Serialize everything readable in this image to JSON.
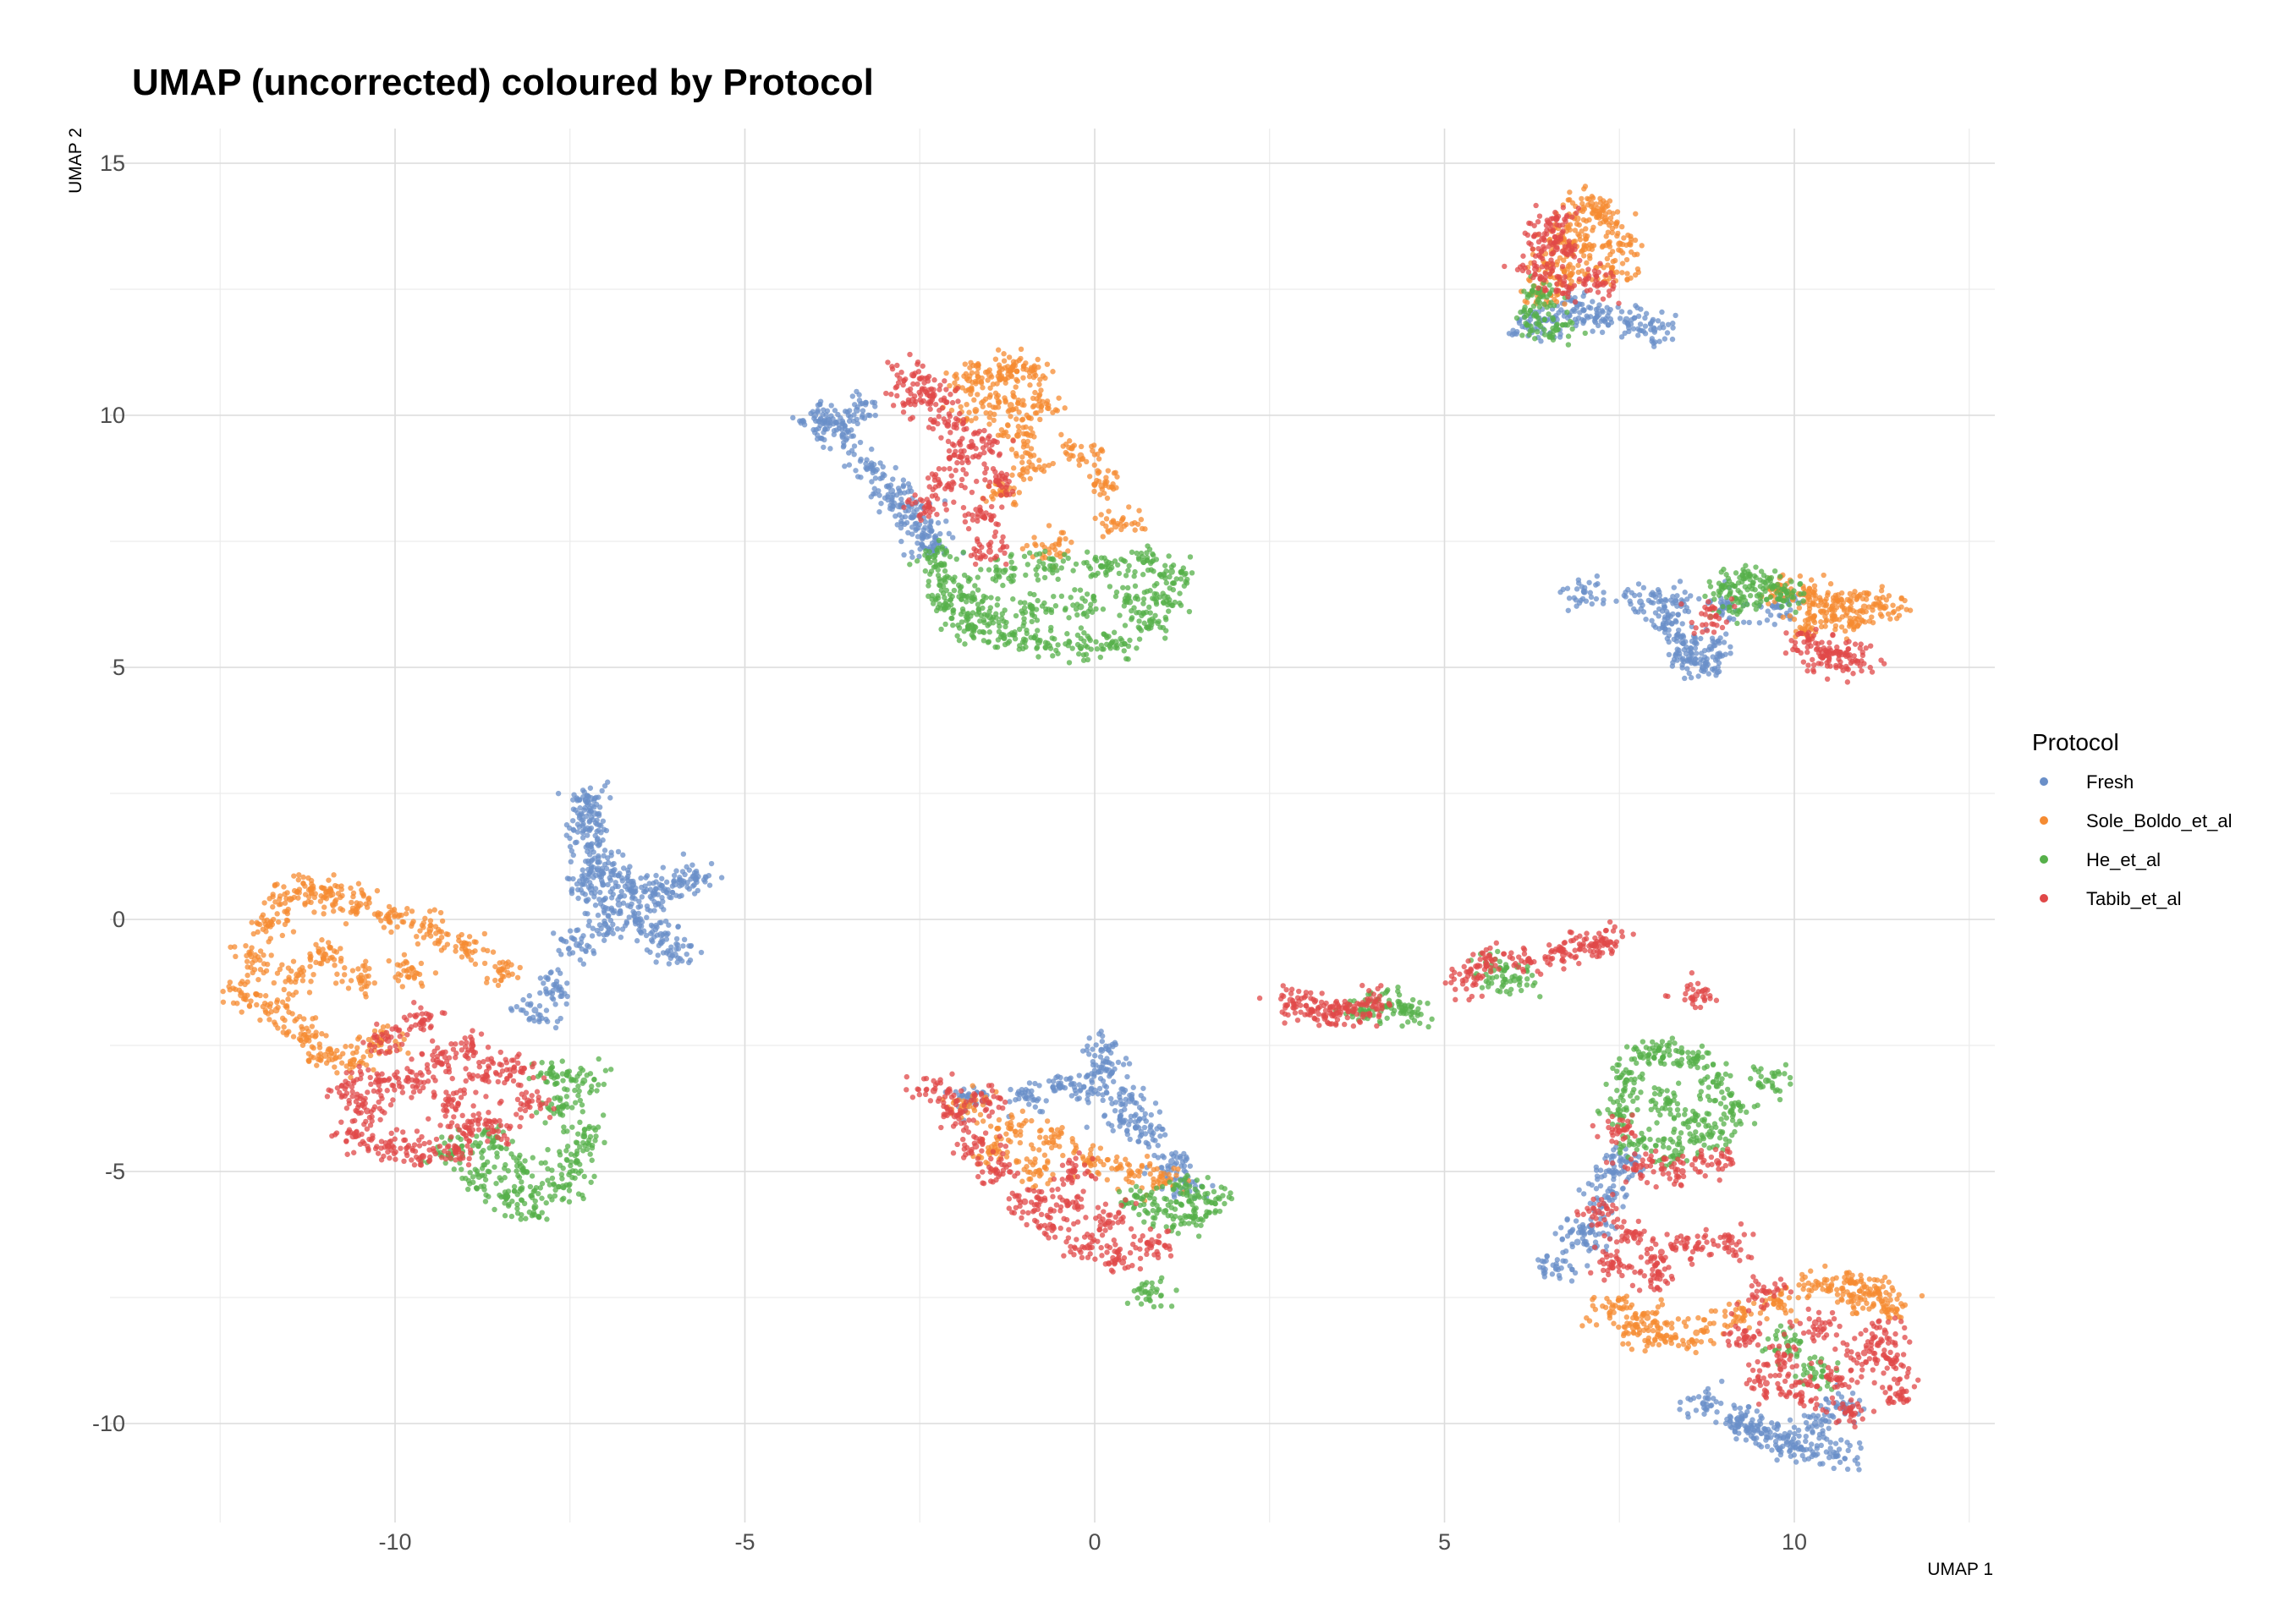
{
  "chart_data": {
    "type": "scatter",
    "title": "UMAP (uncorrected) coloured by Protocol",
    "xlabel": "UMAP 1",
    "ylabel": "UMAP 2",
    "xlim": [
      -13.0,
      13.0
    ],
    "ylim": [
      -12.0,
      15.6
    ],
    "x_ticks": [
      -10,
      -5,
      0,
      5,
      10
    ],
    "y_ticks": [
      -10,
      -5,
      0,
      5,
      10,
      15
    ],
    "grid": true,
    "legend": {
      "title": "Protocol",
      "position": "right"
    },
    "series": [
      {
        "name": "Fresh",
        "color": "#6a8fc8",
        "points": [
          [
            -7.2,
            2.4
          ],
          [
            -7.15,
            2.1
          ],
          [
            -7.25,
            1.8
          ],
          [
            -7.2,
            1.4
          ],
          [
            -7.1,
            1.0
          ],
          [
            -7.2,
            0.6
          ],
          [
            -6.9,
            0.9
          ],
          [
            -6.6,
            0.7
          ],
          [
            -6.3,
            0.5
          ],
          [
            -6.0,
            0.7
          ],
          [
            -5.7,
            0.8
          ],
          [
            -6.8,
            0.3
          ],
          [
            -6.5,
            0.0
          ],
          [
            -6.2,
            -0.3
          ],
          [
            -6.0,
            -0.7
          ],
          [
            -7.0,
            -0.1
          ],
          [
            -7.4,
            -0.5
          ],
          [
            -7.7,
            -1.3
          ],
          [
            -8.0,
            -1.8
          ],
          [
            -4.0,
            10.0
          ],
          [
            -3.6,
            9.6
          ],
          [
            -3.2,
            9.0
          ],
          [
            -2.9,
            8.5
          ],
          [
            -2.6,
            8.0
          ],
          [
            -2.3,
            7.4
          ],
          [
            -3.8,
            9.9
          ],
          [
            -3.4,
            10.1
          ],
          [
            -2.8,
            8.2
          ],
          [
            -2.4,
            7.6
          ],
          [
            0.1,
            -2.6
          ],
          [
            0.2,
            -3.0
          ],
          [
            0.0,
            -3.4
          ],
          [
            0.5,
            -3.6
          ],
          [
            -0.5,
            -3.3
          ],
          [
            -1.0,
            -3.5
          ],
          [
            -1.8,
            -3.5
          ],
          [
            0.8,
            -4.2
          ],
          [
            1.1,
            -4.8
          ],
          [
            1.3,
            -5.2
          ],
          [
            0.4,
            -4.0
          ],
          [
            9.8,
            6.2
          ],
          [
            9.0,
            6.2
          ],
          [
            8.3,
            6.3
          ],
          [
            7.8,
            6.3
          ],
          [
            7.0,
            6.5
          ],
          [
            8.2,
            5.9
          ],
          [
            8.4,
            5.5
          ],
          [
            8.5,
            5.2
          ],
          [
            8.7,
            5.0
          ],
          [
            8.8,
            5.4
          ],
          [
            6.2,
            11.8
          ],
          [
            6.6,
            11.9
          ],
          [
            7.2,
            12.0
          ],
          [
            7.6,
            11.9
          ],
          [
            8.0,
            11.7
          ],
          [
            6.9,
            12.2
          ],
          [
            6.6,
            -6.9
          ],
          [
            6.9,
            -6.4
          ],
          [
            7.1,
            -6.1
          ],
          [
            7.3,
            -5.5
          ],
          [
            7.4,
            -5.0
          ],
          [
            7.6,
            -4.8
          ],
          [
            8.7,
            -9.6
          ],
          [
            9.2,
            -9.9
          ],
          [
            9.6,
            -10.2
          ],
          [
            10.1,
            -10.5
          ],
          [
            10.6,
            -10.6
          ],
          [
            9.9,
            -10.4
          ],
          [
            9.4,
            -10.1
          ],
          [
            10.3,
            -10.0
          ],
          [
            10.6,
            -9.6
          ]
        ]
      },
      {
        "name": "Sole_Boldo_et_al",
        "color": "#f58b32",
        "points": [
          [
            -12.2,
            -1.5
          ],
          [
            -12.0,
            -0.8
          ],
          [
            -11.8,
            -0.1
          ],
          [
            -11.5,
            0.4
          ],
          [
            -11.2,
            0.6
          ],
          [
            -10.9,
            0.5
          ],
          [
            -10.5,
            0.3
          ],
          [
            -10.0,
            0.1
          ],
          [
            -9.5,
            -0.2
          ],
          [
            -9.0,
            -0.5
          ],
          [
            -8.5,
            -1.0
          ],
          [
            -11.7,
            -1.8
          ],
          [
            -11.3,
            -2.3
          ],
          [
            -11.0,
            -2.7
          ],
          [
            -10.6,
            -2.8
          ],
          [
            -10.2,
            -2.4
          ],
          [
            -11.0,
            -0.7
          ],
          [
            -10.5,
            -1.2
          ],
          [
            -9.8,
            -1.0
          ],
          [
            -11.4,
            -1.1
          ],
          [
            -1.8,
            10.7
          ],
          [
            -1.5,
            10.8
          ],
          [
            -1.2,
            10.9
          ],
          [
            -0.9,
            10.9
          ],
          [
            -0.8,
            10.2
          ],
          [
            -1.1,
            9.6
          ],
          [
            -0.9,
            9.0
          ],
          [
            -1.3,
            8.5
          ],
          [
            -0.2,
            9.2
          ],
          [
            0.1,
            8.6
          ],
          [
            0.3,
            7.8
          ],
          [
            -0.6,
            7.4
          ],
          [
            -1.2,
            10.2
          ],
          [
            -1.7,
            10.1
          ],
          [
            6.4,
            12.4
          ],
          [
            6.5,
            13.0
          ],
          [
            6.7,
            13.5
          ],
          [
            6.9,
            13.9
          ],
          [
            7.1,
            14.2
          ],
          [
            7.3,
            13.9
          ],
          [
            7.5,
            13.4
          ],
          [
            7.4,
            12.8
          ],
          [
            6.8,
            12.8
          ],
          [
            7.0,
            13.3
          ],
          [
            9.8,
            6.5
          ],
          [
            10.2,
            6.4
          ],
          [
            10.6,
            6.3
          ],
          [
            11.0,
            6.2
          ],
          [
            11.3,
            6.2
          ],
          [
            10.8,
            5.9
          ],
          [
            10.2,
            5.8
          ],
          [
            10.4,
            6.1
          ],
          [
            -1.8,
            -3.7
          ],
          [
            -1.2,
            -4.1
          ],
          [
            -0.6,
            -4.4
          ],
          [
            -0.1,
            -4.8
          ],
          [
            0.5,
            -5.0
          ],
          [
            1.0,
            -5.2
          ],
          [
            -1.5,
            -4.6
          ],
          [
            -0.8,
            -5.0
          ],
          [
            7.4,
            -7.7
          ],
          [
            7.7,
            -8.1
          ],
          [
            8.1,
            -8.3
          ],
          [
            8.6,
            -8.2
          ],
          [
            9.2,
            -7.9
          ],
          [
            9.8,
            -7.6
          ],
          [
            10.3,
            -7.3
          ],
          [
            10.8,
            -7.2
          ],
          [
            11.2,
            -7.4
          ],
          [
            11.4,
            -7.7
          ],
          [
            7.9,
            -7.9
          ],
          [
            10.9,
            -7.5
          ]
        ]
      },
      {
        "name": "He_et_al",
        "color": "#56b04a",
        "points": [
          [
            -9.2,
            -4.6
          ],
          [
            -8.8,
            -5.1
          ],
          [
            -8.4,
            -5.5
          ],
          [
            -8.0,
            -5.7
          ],
          [
            -7.6,
            -5.3
          ],
          [
            -7.4,
            -4.8
          ],
          [
            -7.3,
            -4.3
          ],
          [
            -7.6,
            -3.7
          ],
          [
            -7.7,
            -3.1
          ],
          [
            -7.3,
            -3.2
          ],
          [
            -8.2,
            -4.9
          ],
          [
            -8.6,
            -4.4
          ],
          [
            -2.3,
            7.2
          ],
          [
            -2.2,
            6.7
          ],
          [
            -2.1,
            6.2
          ],
          [
            -1.8,
            5.8
          ],
          [
            -1.3,
            5.6
          ],
          [
            -0.8,
            5.5
          ],
          [
            -0.2,
            5.4
          ],
          [
            0.3,
            5.5
          ],
          [
            0.8,
            5.9
          ],
          [
            1.0,
            6.4
          ],
          [
            1.1,
            6.9
          ],
          [
            0.7,
            7.1
          ],
          [
            0.1,
            7.0
          ],
          [
            -0.6,
            7.0
          ],
          [
            -1.3,
            6.9
          ],
          [
            -1.8,
            6.4
          ],
          [
            -0.9,
            6.2
          ],
          [
            -0.2,
            6.2
          ],
          [
            0.5,
            6.3
          ],
          [
            -1.5,
            6.0
          ],
          [
            6.3,
            12.0
          ],
          [
            6.4,
            12.4
          ],
          [
            6.6,
            11.7
          ],
          [
            9.0,
            6.6
          ],
          [
            9.3,
            6.8
          ],
          [
            9.6,
            6.6
          ],
          [
            9.2,
            6.3
          ],
          [
            9.9,
            6.5
          ],
          [
            7.8,
            -2.7
          ],
          [
            8.2,
            -2.6
          ],
          [
            8.6,
            -2.8
          ],
          [
            8.9,
            -3.3
          ],
          [
            9.1,
            -3.8
          ],
          [
            8.8,
            -4.3
          ],
          [
            8.3,
            -4.6
          ],
          [
            7.8,
            -4.4
          ],
          [
            7.5,
            -3.8
          ],
          [
            7.6,
            -3.2
          ],
          [
            8.2,
            -3.6
          ],
          [
            8.5,
            -4.0
          ],
          [
            9.6,
            -3.2
          ],
          [
            0.6,
            -5.5
          ],
          [
            1.0,
            -5.8
          ],
          [
            1.4,
            -5.9
          ],
          [
            1.6,
            -5.6
          ],
          [
            1.3,
            -5.3
          ],
          [
            0.8,
            -7.4
          ],
          [
            3.8,
            -1.8
          ],
          [
            4.2,
            -1.7
          ],
          [
            4.5,
            -1.8
          ],
          [
            5.7,
            -1.0
          ],
          [
            6.0,
            -1.2
          ],
          [
            9.9,
            -8.4
          ],
          [
            10.3,
            -9.0
          ]
        ]
      },
      {
        "name": "Tabib_et_al",
        "color": "#e04848",
        "points": [
          [
            -10.7,
            -3.3
          ],
          [
            -10.4,
            -3.8
          ],
          [
            -10.6,
            -4.3
          ],
          [
            -10.1,
            -4.5
          ],
          [
            -9.6,
            -4.7
          ],
          [
            -9.1,
            -4.6
          ],
          [
            -8.6,
            -4.2
          ],
          [
            -8.1,
            -3.6
          ],
          [
            -8.3,
            -3.0
          ],
          [
            -8.9,
            -2.5
          ],
          [
            -9.6,
            -2.0
          ],
          [
            -10.1,
            -2.4
          ],
          [
            -9.7,
            -3.2
          ],
          [
            -9.2,
            -3.6
          ],
          [
            -8.7,
            -3.1
          ],
          [
            -10.2,
            -3.2
          ],
          [
            -9.4,
            -2.8
          ],
          [
            -9.0,
            -4.1
          ],
          [
            -2.6,
            10.8
          ],
          [
            -2.3,
            10.4
          ],
          [
            -2.1,
            9.8
          ],
          [
            -1.9,
            9.2
          ],
          [
            -2.1,
            8.6
          ],
          [
            -2.4,
            8.2
          ],
          [
            -1.6,
            8.0
          ],
          [
            -1.4,
            8.7
          ],
          [
            -1.6,
            9.5
          ],
          [
            -2.6,
            10.3
          ],
          [
            -1.5,
            7.3
          ],
          [
            -2.3,
            -3.4
          ],
          [
            -2.0,
            -3.9
          ],
          [
            -1.7,
            -4.5
          ],
          [
            -1.4,
            -5.0
          ],
          [
            -1.0,
            -5.6
          ],
          [
            -0.6,
            -6.1
          ],
          [
            -0.1,
            -6.5
          ],
          [
            0.4,
            -6.8
          ],
          [
            0.8,
            -6.5
          ],
          [
            0.2,
            -6.0
          ],
          [
            -0.4,
            -5.6
          ],
          [
            -1.6,
            -3.6
          ],
          [
            -0.3,
            -5.0
          ],
          [
            6.4,
            13.5
          ],
          [
            6.3,
            12.9
          ],
          [
            6.6,
            13.9
          ],
          [
            6.7,
            12.6
          ],
          [
            6.6,
            13.3
          ],
          [
            7.2,
            12.6
          ],
          [
            2.8,
            -1.6
          ],
          [
            3.1,
            -1.8
          ],
          [
            3.4,
            -1.9
          ],
          [
            3.7,
            -1.8
          ],
          [
            4.0,
            -1.7
          ],
          [
            5.3,
            -1.2
          ],
          [
            5.6,
            -0.9
          ],
          [
            6.2,
            -0.8
          ],
          [
            6.7,
            -0.7
          ],
          [
            7.1,
            -0.5
          ],
          [
            7.3,
            -0.4
          ],
          [
            8.6,
            -1.5
          ],
          [
            10.2,
            5.5
          ],
          [
            10.6,
            5.3
          ],
          [
            10.9,
            5.1
          ],
          [
            10.4,
            5.2
          ],
          [
            8.8,
            6.0
          ],
          [
            7.5,
            -4.2
          ],
          [
            7.8,
            -4.9
          ],
          [
            8.4,
            -5.0
          ],
          [
            8.9,
            -4.8
          ],
          [
            7.2,
            -5.8
          ],
          [
            7.6,
            -6.3
          ],
          [
            8.1,
            -6.6
          ],
          [
            8.6,
            -6.5
          ],
          [
            9.1,
            -6.4
          ],
          [
            7.4,
            -6.9
          ],
          [
            8.0,
            -7.1
          ],
          [
            9.6,
            -7.4
          ],
          [
            9.3,
            -8.3
          ],
          [
            9.6,
            -9.2
          ],
          [
            10.1,
            -9.4
          ],
          [
            10.6,
            -9.1
          ],
          [
            11.0,
            -8.6
          ],
          [
            11.4,
            -8.8
          ],
          [
            11.5,
            -9.4
          ],
          [
            11.3,
            -8.2
          ],
          [
            10.3,
            -8.0
          ],
          [
            9.8,
            -8.7
          ],
          [
            10.8,
            -9.7
          ]
        ]
      }
    ]
  }
}
